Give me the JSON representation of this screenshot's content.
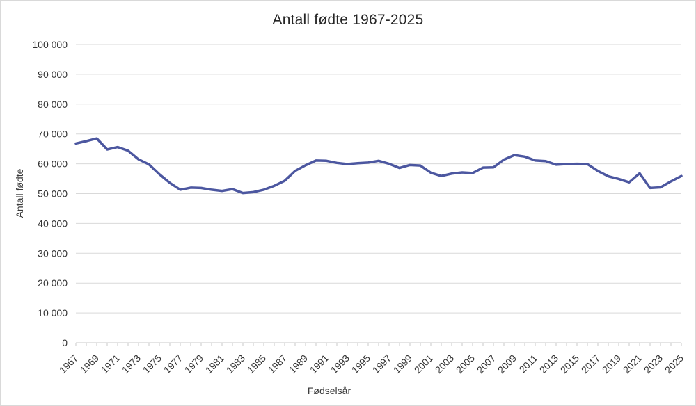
{
  "chart_data": {
    "type": "line",
    "title": "Antall fødte 1967-2025",
    "xlabel": "Fødselsår",
    "ylabel": "Antall fødte",
    "legend": "none",
    "grid": "horizontal",
    "ylim": [
      0,
      100000
    ],
    "ytick_step": 10000,
    "ytick_labels": [
      "0",
      "10 000",
      "20 000",
      "30 000",
      "40 000",
      "50 000",
      "60 000",
      "70 000",
      "80 000",
      "90 000",
      "100 000"
    ],
    "x": [
      1967,
      1968,
      1969,
      1970,
      1971,
      1972,
      1973,
      1974,
      1975,
      1976,
      1977,
      1978,
      1979,
      1980,
      1981,
      1982,
      1983,
      1984,
      1985,
      1986,
      1987,
      1988,
      1989,
      1990,
      1991,
      1992,
      1993,
      1994,
      1995,
      1996,
      1997,
      1998,
      1999,
      2000,
      2001,
      2002,
      2003,
      2004,
      2005,
      2006,
      2007,
      2008,
      2009,
      2010,
      2011,
      2012,
      2013,
      2014,
      2015,
      2016,
      2017,
      2018,
      2019,
      2020,
      2021,
      2022,
      2023,
      2024,
      2025
    ],
    "xtick_labels": [
      1967,
      1969,
      1971,
      1973,
      1975,
      1977,
      1979,
      1981,
      1983,
      1985,
      1987,
      1989,
      1991,
      1993,
      1995,
      1997,
      1999,
      2001,
      2003,
      2005,
      2007,
      2009,
      2011,
      2013,
      2015,
      2017,
      2019,
      2021,
      2023,
      2025
    ],
    "series": [
      {
        "name": "Antall fødte",
        "values": [
          66800,
          67600,
          68500,
          64800,
          65600,
          64400,
          61500,
          59800,
          56500,
          53600,
          51300,
          52000,
          51900,
          51300,
          50900,
          51500,
          50200,
          50500,
          51300,
          52600,
          54300,
          57600,
          59500,
          61100,
          61000,
          60300,
          59900,
          60200,
          60400,
          61000,
          60000,
          58600,
          59600,
          59400,
          57000,
          55900,
          56700,
          57100,
          56900,
          58700,
          58800,
          61400,
          62900,
          62400,
          61100,
          60900,
          59700,
          59900,
          60000,
          59900,
          57600,
          55800,
          54900,
          53800,
          56800,
          51900,
          52100,
          54100,
          55900
        ]
      }
    ],
    "line_color": "#4c57a0",
    "grid_color": "#d9d9d9",
    "axis_color": "#c9c9c9",
    "text_color": "#333333",
    "title_color": "#262626"
  }
}
